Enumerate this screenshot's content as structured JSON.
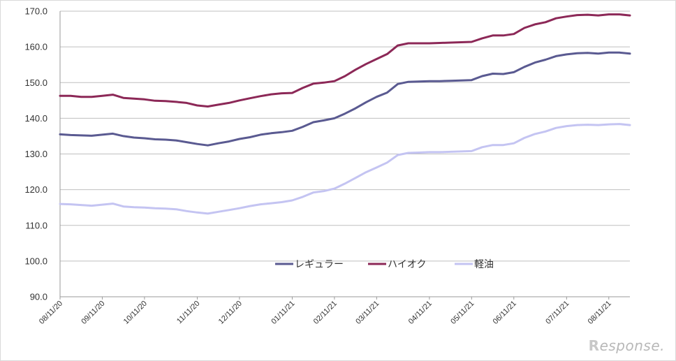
{
  "chart_data": {
    "type": "line",
    "title": "",
    "xlabel": "",
    "ylabel": "",
    "ylim": [
      90,
      170
    ],
    "yticks": [
      "90.0",
      "100.0",
      "110.0",
      "120.0",
      "130.0",
      "140.0",
      "150.0",
      "160.0",
      "170.0"
    ],
    "grid": true,
    "legend_position": "bottom-center",
    "x_tick_labels": [
      {
        "label": "08/11/20",
        "index": 0
      },
      {
        "label": "09/11/20",
        "index": 4
      },
      {
        "label": "10/11/20",
        "index": 8
      },
      {
        "label": "11/11/20",
        "index": 13
      },
      {
        "label": "12/11/20",
        "index": 17
      },
      {
        "label": "01/11/21",
        "index": 22
      },
      {
        "label": "02/11/21",
        "index": 26
      },
      {
        "label": "03/11/21",
        "index": 30
      },
      {
        "label": "04/11/21",
        "index": 35
      },
      {
        "label": "05/11/21",
        "index": 39
      },
      {
        "label": "06/11/21",
        "index": 43
      },
      {
        "label": "07/11/21",
        "index": 48
      },
      {
        "label": "08/11/21",
        "index": 52
      }
    ],
    "series": [
      {
        "name": "レギュラー",
        "color": "#5a5a91",
        "values": [
          135.5,
          135.3,
          135.2,
          135.1,
          135.4,
          135.7,
          135.0,
          134.6,
          134.4,
          134.1,
          134.0,
          133.8,
          133.3,
          132.8,
          132.4,
          133.0,
          133.5,
          134.2,
          134.7,
          135.4,
          135.8,
          136.1,
          136.5,
          137.6,
          138.9,
          139.4,
          140.0,
          141.3,
          142.8,
          144.5,
          146.0,
          147.2,
          149.6,
          150.2,
          150.3,
          150.4,
          150.4,
          150.5,
          150.6,
          150.7,
          151.8,
          152.5,
          152.4,
          152.9,
          154.4,
          155.6,
          156.4,
          157.4,
          157.9,
          158.2,
          158.3,
          158.1,
          158.4,
          158.4,
          158.1
        ]
      },
      {
        "name": "ハイオク",
        "color": "#8c2857",
        "values": [
          146.3,
          146.3,
          146.0,
          146.0,
          146.3,
          146.6,
          145.7,
          145.5,
          145.3,
          144.9,
          144.8,
          144.6,
          144.3,
          143.6,
          143.3,
          143.8,
          144.3,
          145.0,
          145.6,
          146.2,
          146.7,
          147.0,
          147.1,
          148.5,
          149.7,
          150.0,
          150.4,
          151.8,
          153.6,
          155.2,
          156.6,
          158.0,
          160.4,
          161.0,
          161.0,
          161.0,
          161.1,
          161.2,
          161.3,
          161.4,
          162.4,
          163.2,
          163.2,
          163.6,
          165.3,
          166.3,
          166.9,
          168.0,
          168.5,
          168.9,
          169.0,
          168.8,
          169.1,
          169.1,
          168.8
        ]
      },
      {
        "name": "軽油",
        "color": "#c4c4f2",
        "values": [
          116.0,
          115.9,
          115.7,
          115.5,
          115.8,
          116.1,
          115.3,
          115.1,
          115.0,
          114.8,
          114.7,
          114.5,
          114.0,
          113.6,
          113.3,
          113.8,
          114.3,
          114.8,
          115.4,
          115.9,
          116.2,
          116.5,
          117.0,
          118.0,
          119.2,
          119.6,
          120.3,
          121.7,
          123.3,
          124.9,
          126.2,
          127.6,
          129.7,
          130.3,
          130.4,
          130.5,
          130.5,
          130.6,
          130.7,
          130.8,
          131.9,
          132.5,
          132.5,
          133.0,
          134.5,
          135.6,
          136.3,
          137.3,
          137.8,
          138.1,
          138.2,
          138.1,
          138.3,
          138.4,
          138.1
        ]
      }
    ]
  },
  "watermark": {
    "mark": "R",
    "text": "esponse."
  }
}
